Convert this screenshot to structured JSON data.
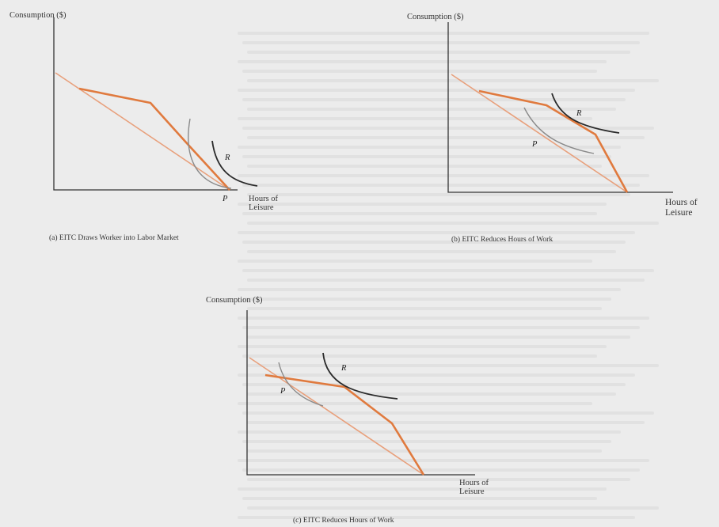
{
  "panels": [
    {
      "id": "a",
      "y_axis_label": "Consumption ($)",
      "x_axis_label_line1": "Hours of",
      "x_axis_label_line2": "Leisure",
      "point_p": "P",
      "point_r": "R",
      "caption": "(a) EITC Draws Worker into Labor Market"
    },
    {
      "id": "b",
      "y_axis_label": "Consumption ($)",
      "x_axis_label_line1": "Hours of",
      "x_axis_label_line2": "Leisure",
      "point_p": "P",
      "point_r": "R",
      "caption": "(b) EITC Reduces Hours of Work"
    },
    {
      "id": "c",
      "y_axis_label": "Consumption ($)",
      "x_axis_label_line1": "Hours of",
      "x_axis_label_line2": "Leisure",
      "point_p": "P",
      "point_r": "R",
      "caption": "(c) EITC Reduces Hours of Work"
    }
  ],
  "colors": {
    "budget_original": "#e8a07c",
    "budget_eitc": "#e07a3e",
    "indifference_p": "#8a8a8a",
    "indifference_r": "#2a2a2a"
  }
}
